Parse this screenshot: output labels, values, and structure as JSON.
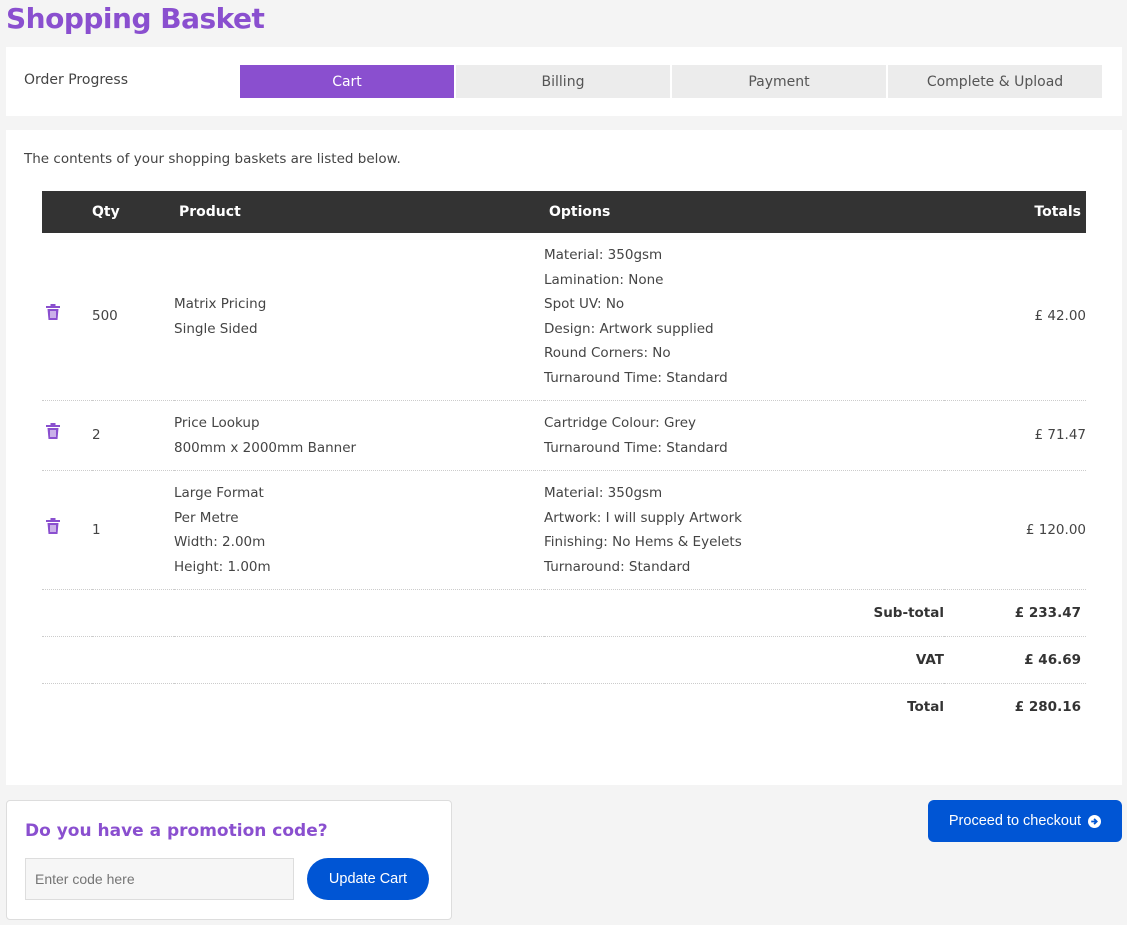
{
  "title": "Shopping Basket",
  "progress": {
    "label": "Order Progress",
    "steps": [
      "Cart",
      "Billing",
      "Payment",
      "Complete & Upload"
    ],
    "active": "Cart"
  },
  "intro": "The contents of your shopping baskets are listed below.",
  "table": {
    "headers": {
      "qty": "Qty",
      "product": "Product",
      "options": "Options",
      "totals": "Totals"
    },
    "rows": [
      {
        "qty": "500",
        "product": [
          "Matrix Pricing",
          "Single Sided"
        ],
        "options": [
          "Material: 350gsm",
          "Lamination: None",
          "Spot UV: No",
          "Design: Artwork supplied",
          "Round Corners: No",
          "Turnaround Time: Standard"
        ],
        "total": "£ 42.00"
      },
      {
        "qty": "2",
        "product": [
          "Price Lookup",
          "800mm x 2000mm Banner"
        ],
        "options": [
          "Cartridge Colour: Grey",
          "Turnaround Time: Standard"
        ],
        "total": "£ 71.47"
      },
      {
        "qty": "1",
        "product": [
          "Large Format",
          "Per Metre",
          "Width: 2.00m",
          "Height: 1.00m"
        ],
        "options": [
          "Material: 350gsm",
          "Artwork: I will supply Artwork",
          "Finishing: No Hems & Eyelets",
          "Turnaround: Standard"
        ],
        "total": "£ 120.00"
      }
    ],
    "summary": [
      {
        "label": "Sub-total",
        "value": "£ 233.47"
      },
      {
        "label": "VAT",
        "value": "£ 46.69"
      },
      {
        "label": "Total",
        "value": "£ 280.16"
      }
    ]
  },
  "promo": {
    "heading": "Do you have a promotion code?",
    "placeholder": "Enter code here",
    "value": "",
    "button": "Update Cart"
  },
  "checkout": {
    "label": "Proceed to checkout",
    "icon": "arrow-circle-right-icon"
  },
  "colors": {
    "accent": "#8a4fcf",
    "button": "#0055d4",
    "header": "#333333"
  }
}
